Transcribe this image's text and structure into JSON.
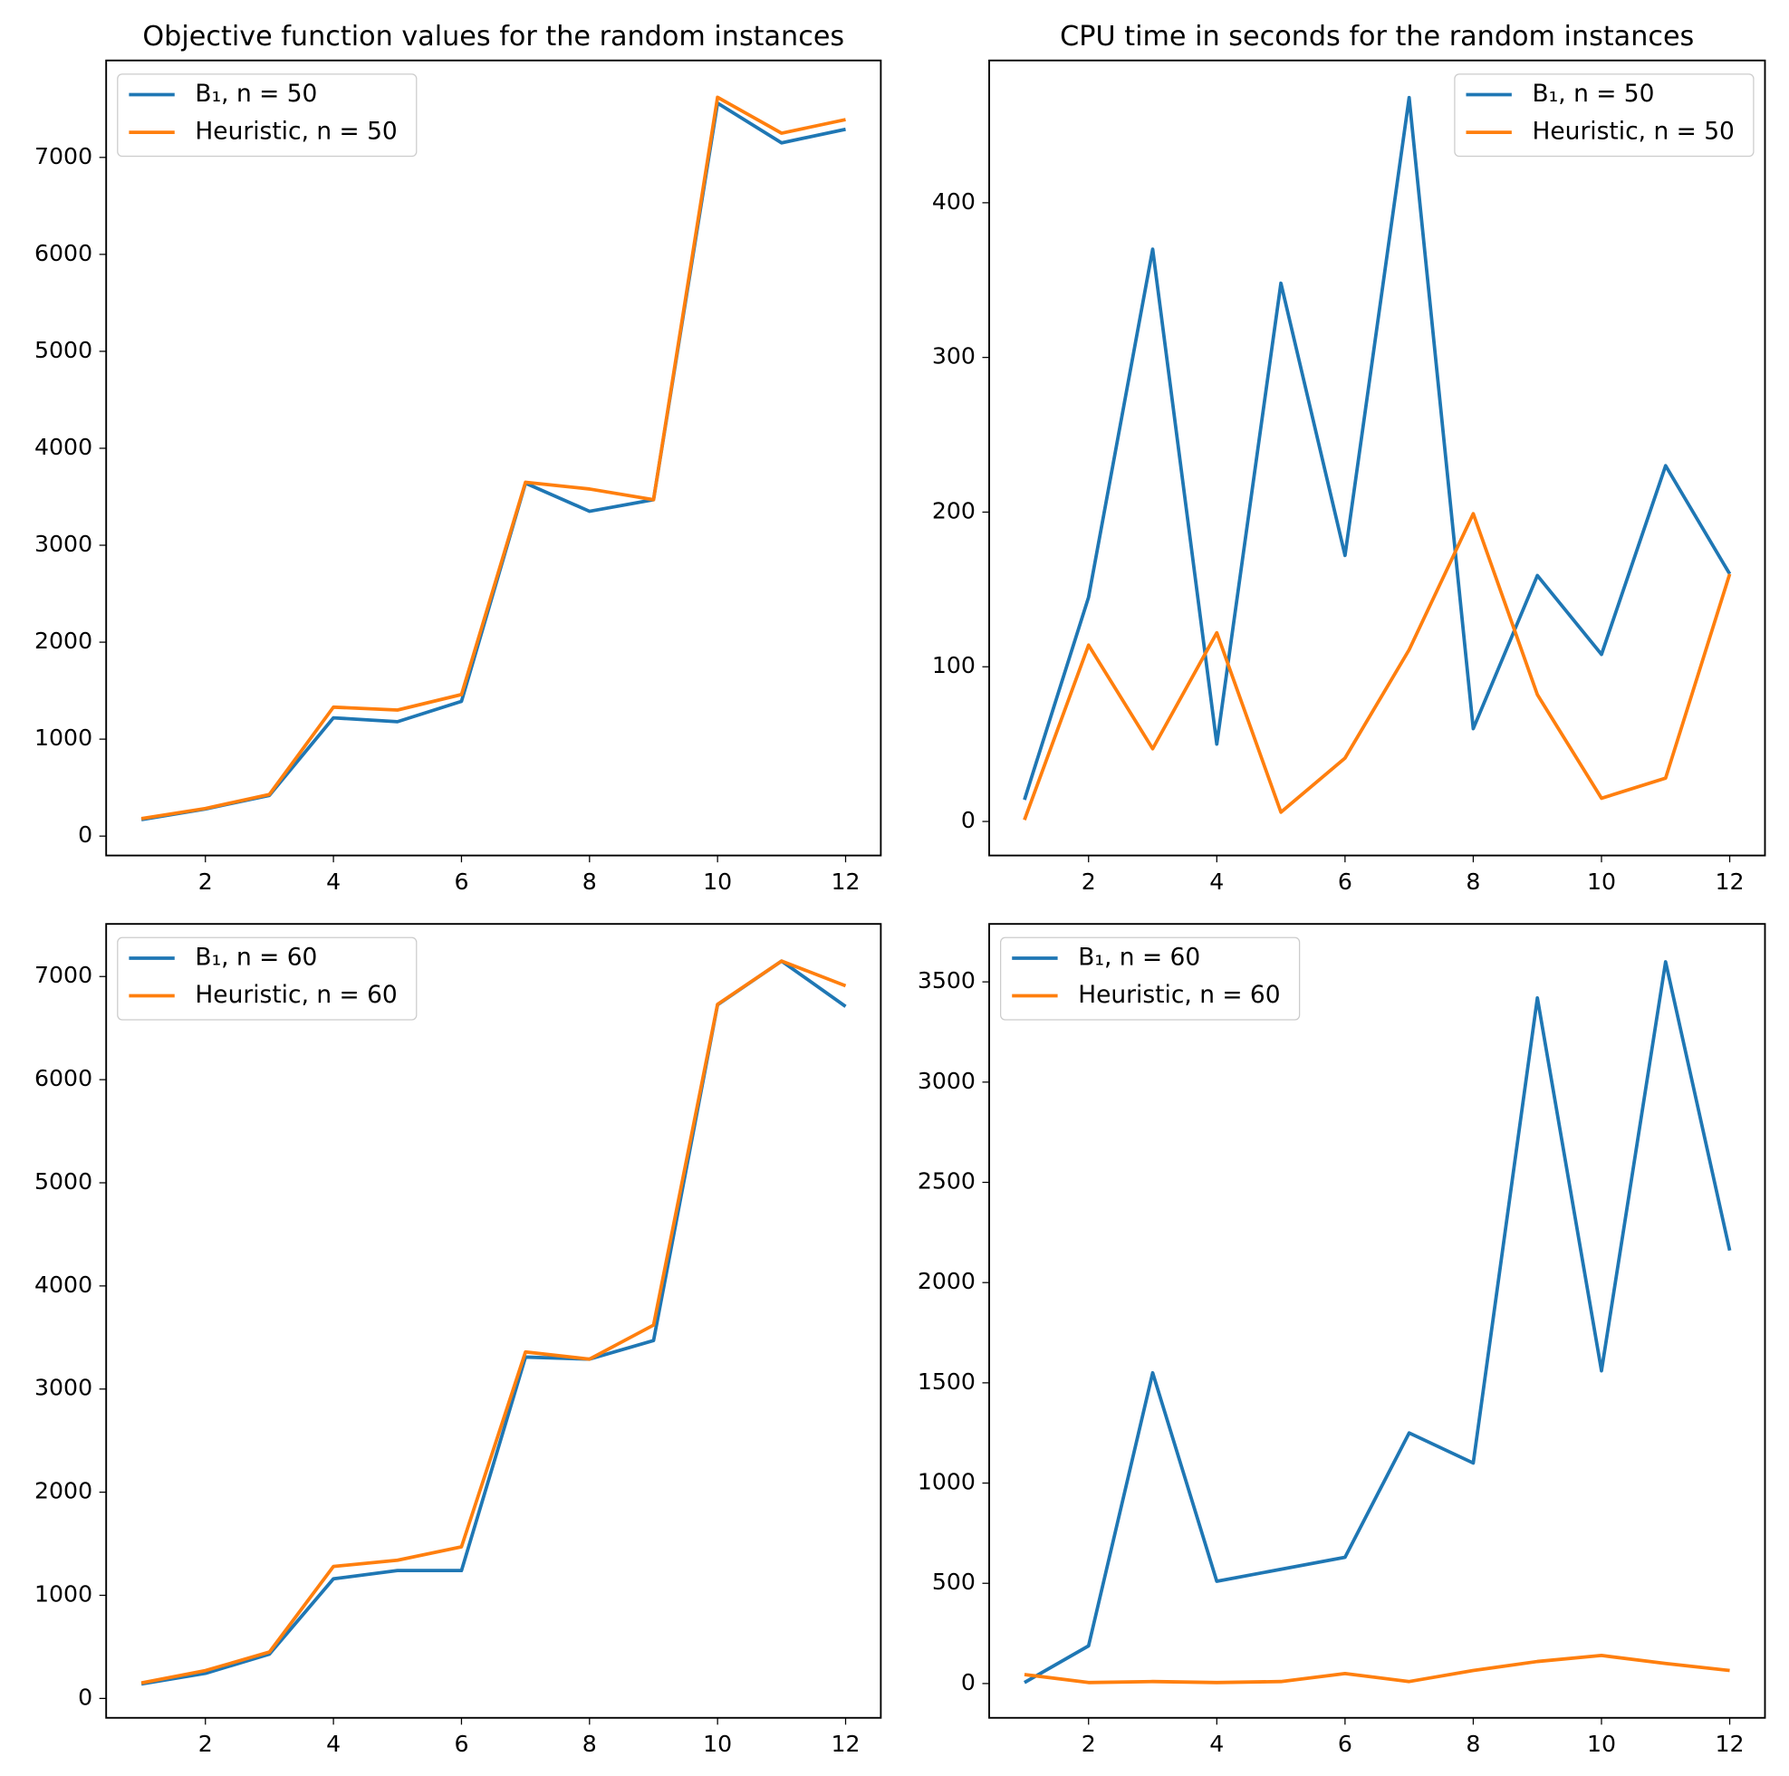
{
  "chart_data": [
    {
      "type": "line",
      "title": "Objective function values for the random instances",
      "x": [
        1,
        2,
        3,
        4,
        5,
        6,
        7,
        8,
        9,
        10,
        11,
        12
      ],
      "series": [
        {
          "name": "B₁, n = 50",
          "color": "#1f77b4",
          "values": [
            170,
            280,
            420,
            1220,
            1180,
            1390,
            3640,
            3350,
            3470,
            7560,
            7150,
            7290
          ]
        },
        {
          "name": "Heuristic, n = 50",
          "color": "#ff7f0e",
          "values": [
            180,
            285,
            430,
            1330,
            1300,
            1460,
            3650,
            3580,
            3470,
            7620,
            7250,
            7390
          ]
        }
      ],
      "xlim": [
        0.45,
        12.55
      ],
      "xticks": [
        2,
        4,
        6,
        8,
        10,
        12
      ],
      "ylim": [
        -200,
        8000
      ],
      "yticks": [
        0,
        1000,
        2000,
        3000,
        4000,
        5000,
        6000,
        7000
      ],
      "legend": "upper left"
    },
    {
      "type": "line",
      "title": "CPU time in seconds for the random instances",
      "x": [
        1,
        2,
        3,
        4,
        5,
        6,
        7,
        8,
        9,
        10,
        11,
        12
      ],
      "series": [
        {
          "name": "B₁, n = 50",
          "color": "#1f77b4",
          "values": [
            14,
            145,
            370,
            50,
            348,
            172,
            468,
            60,
            159,
            108,
            230,
            160
          ]
        },
        {
          "name": "Heuristic, n = 50",
          "color": "#ff7f0e",
          "values": [
            1,
            114,
            47,
            122,
            6,
            41,
            111,
            199,
            82,
            15,
            28,
            160
          ]
        }
      ],
      "xlim": [
        0.45,
        12.55
      ],
      "xticks": [
        2,
        4,
        6,
        8,
        10,
        12
      ],
      "ylim": [
        -22,
        492
      ],
      "yticks": [
        0,
        100,
        200,
        300,
        400
      ],
      "legend": "upper right"
    },
    {
      "type": "line",
      "x": [
        1,
        2,
        3,
        4,
        5,
        6,
        7,
        8,
        9,
        10,
        11,
        12
      ],
      "series": [
        {
          "name": "B₁, n = 60",
          "color": "#1f77b4",
          "values": [
            140,
            243,
            430,
            1160,
            1240,
            1240,
            3310,
            3290,
            3470,
            6726,
            7150,
            6710
          ]
        },
        {
          "name": "Heuristic, n = 60",
          "color": "#ff7f0e",
          "values": [
            150,
            270,
            450,
            1280,
            1340,
            1470,
            3360,
            3290,
            3620,
            6730,
            7150,
            6910
          ]
        }
      ],
      "xlim": [
        0.45,
        12.55
      ],
      "xticks": [
        2,
        4,
        6,
        8,
        10,
        12
      ],
      "ylim": [
        -188,
        7510
      ],
      "yticks": [
        0,
        1000,
        2000,
        3000,
        4000,
        5000,
        6000,
        7000
      ],
      "legend": "upper left"
    },
    {
      "type": "line",
      "x": [
        1,
        2,
        3,
        4,
        5,
        6,
        7,
        8,
        9,
        10,
        11,
        12
      ],
      "series": [
        {
          "name": "B₁, n = 60",
          "color": "#1f77b4",
          "values": [
            5,
            188,
            1550,
            510,
            570,
            630,
            1250,
            1100,
            3420,
            1560,
            3600,
            2160
          ]
        },
        {
          "name": "Heuristic, n = 60",
          "color": "#ff7f0e",
          "values": [
            45,
            5,
            10,
            5,
            10,
            50,
            10,
            65,
            110,
            140,
            100,
            65
          ]
        }
      ],
      "xlim": [
        0.45,
        12.55
      ],
      "xticks": [
        2,
        4,
        6,
        8,
        10,
        12
      ],
      "ylim": [
        -171,
        3789
      ],
      "yticks": [
        0,
        500,
        1000,
        1500,
        2000,
        2500,
        3000,
        3500
      ],
      "legend": "upper left"
    }
  ]
}
